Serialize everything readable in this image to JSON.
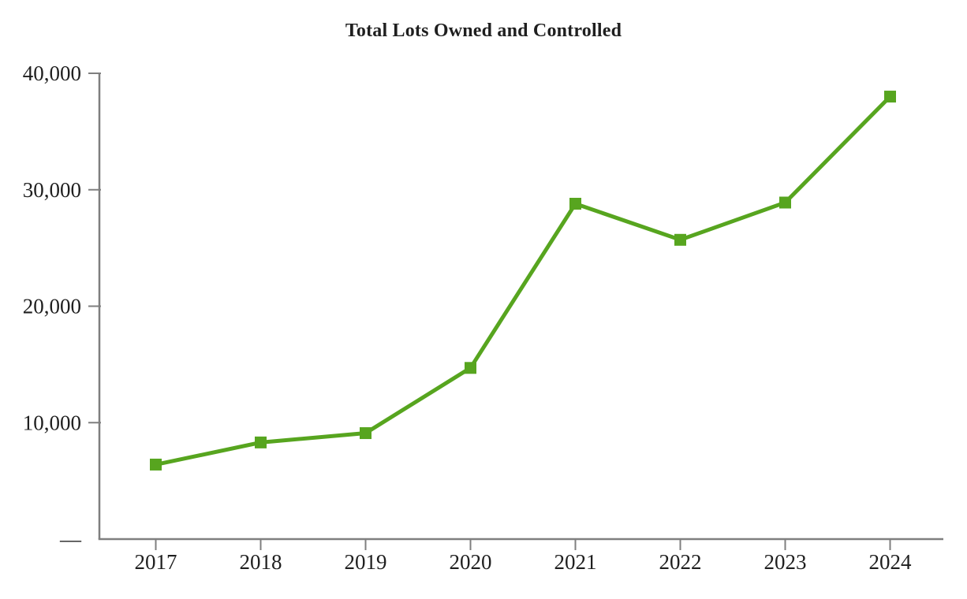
{
  "chart_data": {
    "type": "line",
    "title": "Total Lots Owned and Controlled",
    "categories": [
      "2017",
      "2018",
      "2019",
      "2020",
      "2021",
      "2022",
      "2023",
      "2024"
    ],
    "values": [
      6400,
      8300,
      9100,
      14700,
      28800,
      25700,
      28900,
      38000
    ],
    "xlabel": "",
    "ylabel": "",
    "ylim": [
      0,
      40000
    ],
    "yticks": [
      {
        "value": 40000,
        "label": "40,000"
      },
      {
        "value": 30000,
        "label": "30,000"
      },
      {
        "value": 20000,
        "label": "20,000"
      },
      {
        "value": 10000,
        "label": "10,000"
      },
      {
        "value": 0,
        "label": "—"
      }
    ],
    "grid": false,
    "legend_position": "none",
    "marker_shape": "square",
    "line_color": "#57A51F",
    "axis_color": "#7f7f7f",
    "text_color": "#1f1f1f"
  }
}
